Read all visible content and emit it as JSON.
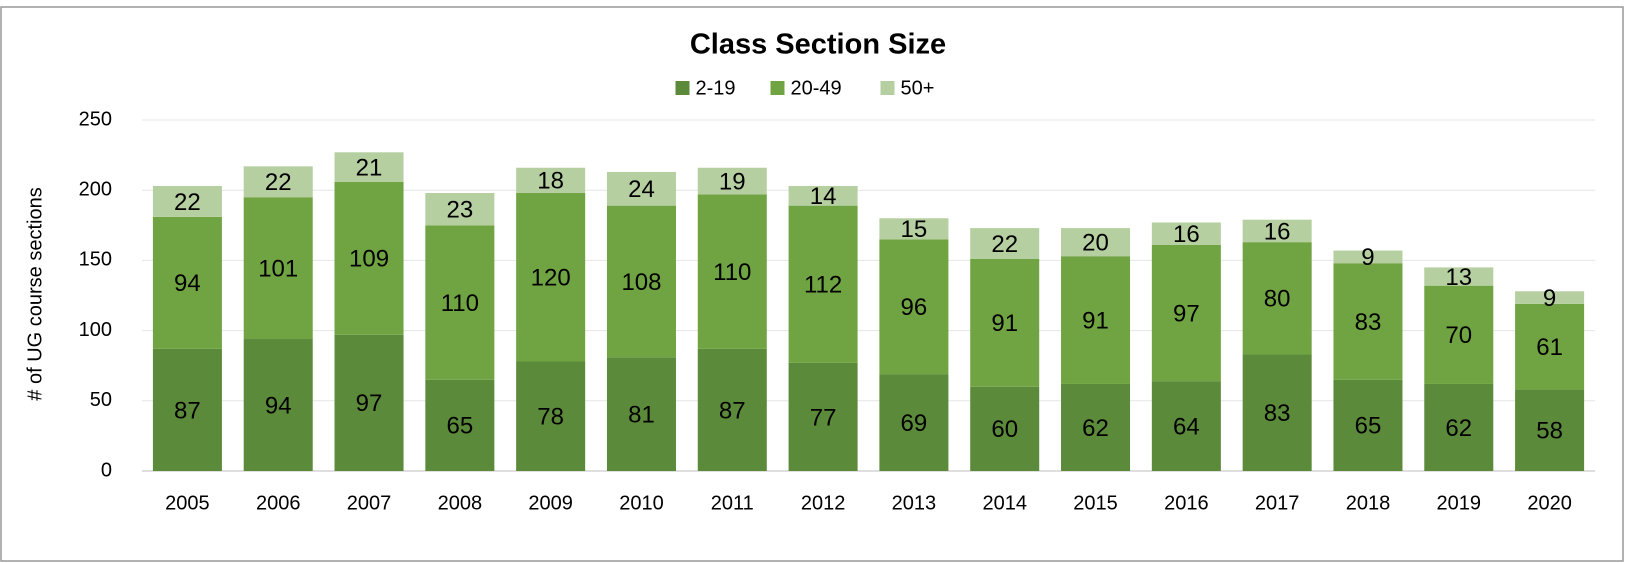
{
  "chart_data": {
    "type": "stacked_bar",
    "title": "Class Section Size",
    "y_label": "# of UG course sections",
    "categories": [
      "2005",
      "2006",
      "2007",
      "2008",
      "2009",
      "2010",
      "2011",
      "2012",
      "2013",
      "2014",
      "2015",
      "2016",
      "2017",
      "2018",
      "2019",
      "2020"
    ],
    "series": [
      {
        "name": "2-19",
        "color": "#5b8a3a",
        "values": [
          87,
          94,
          97,
          65,
          78,
          81,
          87,
          77,
          69,
          60,
          62,
          64,
          83,
          65,
          62,
          58
        ]
      },
      {
        "name": "20-49",
        "color": "#70a442",
        "values": [
          94,
          101,
          109,
          110,
          120,
          108,
          110,
          112,
          96,
          91,
          91,
          97,
          80,
          83,
          70,
          61
        ]
      },
      {
        "name": "50+",
        "color": "#b5cfa0",
        "values": [
          22,
          22,
          21,
          23,
          18,
          24,
          19,
          14,
          15,
          22,
          20,
          16,
          16,
          9,
          13,
          9
        ]
      }
    ],
    "ylim": [
      0,
      250
    ],
    "yticks": [
      0,
      50,
      100,
      150,
      200,
      250
    ],
    "grid": true,
    "legend": "top"
  }
}
